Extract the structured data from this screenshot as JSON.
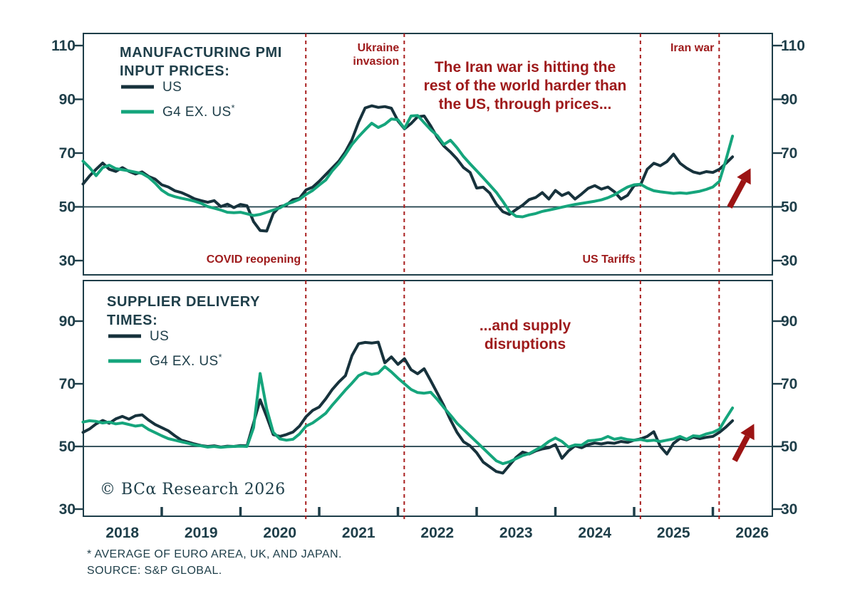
{
  "colors": {
    "dark": "#17323c",
    "green": "#15a57c",
    "red": "#9e1a1b",
    "dash_red": "#a81e1e",
    "arrow_red": "#9c1414",
    "axis_text": "#1e3e49"
  },
  "footer": {
    "copyright": "© BCα Research 2026",
    "footnote": "* AVERAGE OF EURO AREA, UK, AND JAPAN.",
    "source": "SOURCE: S&P GLOBAL."
  },
  "x_axis": {
    "year_labels": [
      2018,
      2019,
      2020,
      2021,
      2022,
      2023,
      2024,
      2025,
      2026
    ],
    "tick_years": [
      2019,
      2020,
      2021,
      2022,
      2023,
      2024,
      2025,
      2026
    ]
  },
  "events": [
    {
      "id": "covid",
      "label_lines": [
        "COVID reopening"
      ],
      "year": 2020.83,
      "label_v": "bottom"
    },
    {
      "id": "ukraine",
      "label_lines": [
        "Ukraine",
        "invasion"
      ],
      "year": 2022.08,
      "label_v": "top"
    },
    {
      "id": "tariffs",
      "label_lines": [
        "US Tariffs"
      ],
      "year": 2025.08,
      "label_v": "bottom"
    },
    {
      "id": "iran",
      "label_lines": [
        "Iran war"
      ],
      "year": 2026.08,
      "label_v": "top"
    }
  ],
  "chart_data": [
    {
      "id": "top",
      "type": "line",
      "title_lines": [
        "MANUFACTURING PMI",
        "INPUT PRICES:"
      ],
      "yticks": [
        110,
        90,
        70,
        50,
        30
      ],
      "ylim": [
        25,
        114
      ],
      "baseline": 50,
      "grid": false,
      "legend_position": "top-left",
      "annotation_lines": [
        "The Iran war is hitting the",
        "rest of the world harder than",
        "the US, through prices..."
      ],
      "x_start_year": 2018,
      "x_step_months": 1,
      "series": [
        {
          "name": "US",
          "color": "dark",
          "values": [
            58.5,
            61.5,
            64.0,
            66.3,
            64.0,
            63.2,
            64.6,
            63.2,
            62.2,
            63.0,
            61.3,
            60.3,
            58.2,
            57.4,
            56.0,
            55.3,
            54.2,
            53.0,
            52.3,
            51.7,
            52.3,
            50.1,
            51.0,
            49.7,
            50.9,
            50.4,
            44.5,
            41.2,
            41.0,
            47.5,
            50.1,
            50.7,
            52.7,
            53.2,
            56.3,
            57.3,
            59.5,
            62.0,
            64.5,
            67.0,
            70.5,
            75.0,
            81.5,
            86.8,
            87.6,
            87.0,
            87.3,
            86.7,
            82.0,
            79.0,
            81.0,
            83.5,
            83.8,
            80.1,
            75.8,
            72.6,
            70.4,
            67.8,
            64.6,
            62.8,
            57.0,
            57.3,
            55.1,
            51.0,
            48.2,
            47.2,
            49.0,
            50.6,
            52.7,
            53.5,
            55.3,
            52.9,
            56.1,
            54.2,
            55.3,
            52.9,
            54.8,
            56.9,
            57.9,
            56.6,
            57.4,
            55.6,
            52.9,
            54.3,
            57.9,
            58.3,
            64.0,
            66.2,
            65.3,
            66.8,
            69.6,
            66.2,
            64.4,
            63.0,
            62.4,
            63.1,
            62.8,
            64.0,
            66.2,
            68.6
          ]
        },
        {
          "name": "G4 EX. US",
          "sup": "*",
          "color": "green",
          "values": [
            67.0,
            64.6,
            61.6,
            64.6,
            65.5,
            64.2,
            63.8,
            63.4,
            62.9,
            62.4,
            61.0,
            58.8,
            56.2,
            54.6,
            53.8,
            53.2,
            52.7,
            52.1,
            51.3,
            50.1,
            49.5,
            48.8,
            48.0,
            47.8,
            48.0,
            47.4,
            46.8,
            47.2,
            48.0,
            48.8,
            49.6,
            51.0,
            51.8,
            52.8,
            54.6,
            56.1,
            58.1,
            60.0,
            63.4,
            66.1,
            69.5,
            73.2,
            76.1,
            78.7,
            81.1,
            79.5,
            80.7,
            82.7,
            82.4,
            79.2,
            83.8,
            84.0,
            81.3,
            78.7,
            76.5,
            73.2,
            74.8,
            72.0,
            68.7,
            66.0,
            63.4,
            60.8,
            58.1,
            55.4,
            52.0,
            48.3,
            46.5,
            46.3,
            47.0,
            47.5,
            48.3,
            48.8,
            49.3,
            49.9,
            50.4,
            50.9,
            51.3,
            51.7,
            52.1,
            52.6,
            53.4,
            54.5,
            56.0,
            57.4,
            58.2,
            58.4,
            57.0,
            56.0,
            55.6,
            55.3,
            55.0,
            55.2,
            55.0,
            55.4,
            55.8,
            56.5,
            57.4,
            59.5,
            67.5,
            76.3
          ]
        }
      ]
    },
    {
      "id": "bottom",
      "type": "line",
      "title_lines": [
        "SUPPLIER DELIVERY",
        "TIMES:"
      ],
      "yticks": [
        90,
        70,
        50,
        30
      ],
      "ylim": [
        28,
        103
      ],
      "baseline": 50,
      "grid": false,
      "legend_position": "top-left",
      "annotation_lines": [
        "...and supply",
        "disruptions"
      ],
      "x_start_year": 2018,
      "x_step_months": 1,
      "series": [
        {
          "name": "US",
          "color": "dark",
          "values": [
            54.5,
            55.6,
            57.2,
            58.3,
            57.4,
            58.8,
            59.6,
            58.7,
            59.8,
            60.1,
            58.4,
            57.0,
            56.0,
            55.0,
            53.4,
            52.0,
            51.4,
            50.8,
            50.3,
            50.0,
            50.2,
            49.8,
            50.1,
            50.0,
            50.3,
            50.2,
            57.5,
            64.9,
            59.5,
            53.8,
            53.2,
            53.8,
            54.6,
            56.5,
            59.5,
            61.5,
            62.6,
            65.2,
            68.2,
            70.6,
            72.6,
            79.0,
            82.8,
            83.2,
            83.0,
            83.3,
            76.7,
            78.6,
            76.2,
            78.0,
            74.5,
            73.2,
            74.8,
            71.0,
            67.0,
            63.0,
            58.5,
            54.5,
            51.5,
            50.2,
            48.0,
            45.0,
            43.5,
            42.0,
            41.5,
            44.0,
            46.5,
            48.2,
            47.6,
            48.6,
            49.2,
            49.6,
            50.6,
            46.2,
            48.6,
            50.2,
            49.6,
            50.6,
            51.1,
            50.8,
            51.2,
            51.0,
            51.6,
            51.3,
            52.0,
            52.4,
            53.2,
            54.7,
            50.0,
            47.6,
            51.0,
            52.6,
            52.1,
            53.0,
            52.5,
            52.9,
            53.2,
            54.5,
            56.2,
            58.2
          ]
        },
        {
          "name": "G4 EX. US",
          "sup": "*",
          "color": "green",
          "values": [
            57.8,
            58.2,
            58.0,
            57.5,
            57.8,
            57.2,
            57.5,
            57.0,
            56.5,
            56.8,
            55.4,
            54.4,
            53.4,
            52.5,
            52.0,
            51.5,
            51.0,
            50.5,
            50.2,
            49.8,
            50.0,
            49.7,
            49.9,
            50.0,
            50.1,
            50.0,
            56.0,
            73.3,
            62.0,
            54.5,
            52.4,
            52.0,
            52.3,
            54.0,
            56.5,
            57.5,
            59.0,
            60.6,
            63.2,
            65.6,
            68.0,
            70.2,
            72.6,
            73.6,
            73.0,
            73.4,
            75.5,
            73.8,
            71.8,
            70.0,
            68.2,
            67.2,
            67.0,
            67.3,
            65.0,
            62.4,
            60.0,
            57.4,
            55.4,
            53.4,
            51.4,
            49.4,
            47.4,
            45.4,
            44.5,
            45.1,
            46.1,
            47.1,
            47.7,
            48.9,
            50.0,
            51.6,
            52.7,
            51.6,
            49.8,
            50.5,
            50.4,
            51.8,
            52.0,
            52.3,
            53.2,
            52.3,
            52.7,
            52.2,
            52.0,
            52.2,
            51.8,
            52.0,
            51.6,
            52.0,
            52.4,
            53.2,
            52.3,
            53.4,
            53.2,
            54.0,
            54.5,
            55.5,
            59.0,
            62.3
          ]
        }
      ]
    }
  ],
  "arrows": [
    {
      "panel": "top"
    },
    {
      "panel": "bottom"
    }
  ]
}
